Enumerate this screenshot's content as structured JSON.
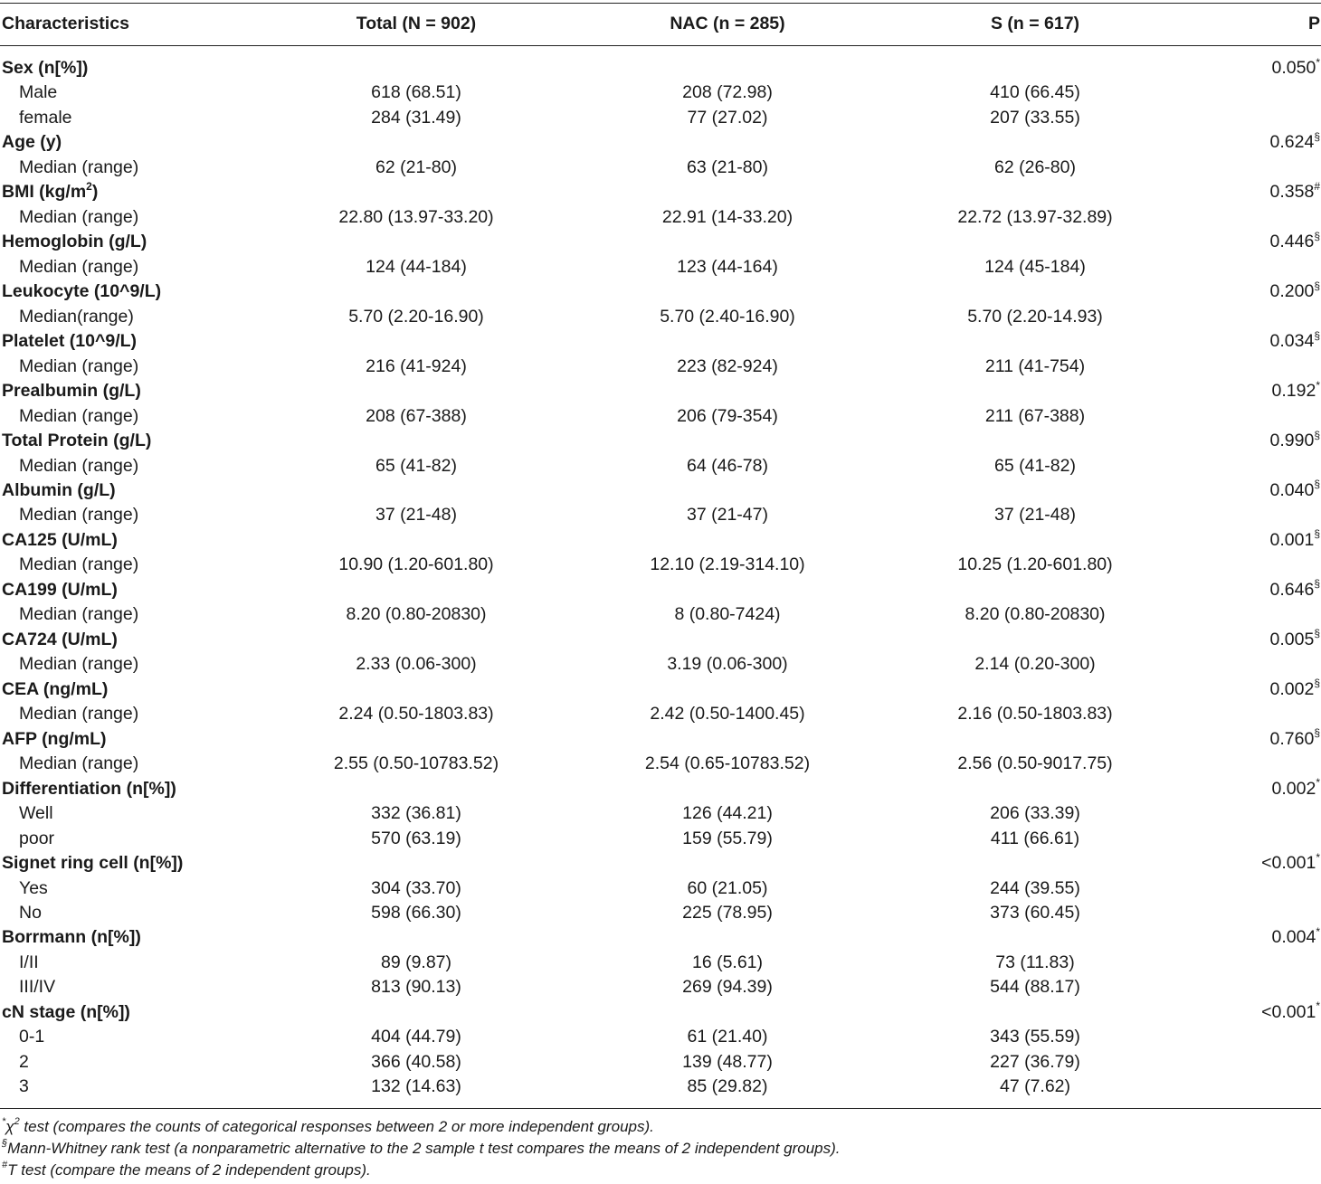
{
  "headers": [
    "Characteristics",
    "Total (N = 902)",
    "NAC (n = 285)",
    "S (n = 617)",
    "P"
  ],
  "rows": [
    {
      "label": "Sex (n[%])",
      "bold": true,
      "p": "0.050",
      "p_mark": "*"
    },
    {
      "label": "Male",
      "total": "618 (68.51)",
      "nac": "208 (72.98)",
      "s": "410 (66.45)"
    },
    {
      "label": "female",
      "total": "284 (31.49)",
      "nac": "77 (27.02)",
      "s": "207 (33.55)"
    },
    {
      "label": "Age (y)",
      "bold": true,
      "p": "0.624",
      "p_mark": "§"
    },
    {
      "label": "Median (range)",
      "total": "62 (21-80)",
      "nac": "63 (21-80)",
      "s": "62 (26-80)"
    },
    {
      "label": "BMI (kg/m",
      "label_sup": "2",
      "label_tail": ")",
      "bold": true,
      "p": "0.358",
      "p_mark": "#"
    },
    {
      "label": "Median (range)",
      "total": "22.80 (13.97-33.20)",
      "nac": "22.91 (14-33.20)",
      "s": "22.72 (13.97-32.89)"
    },
    {
      "label": "Hemoglobin (g/L)",
      "bold": true,
      "p": "0.446",
      "p_mark": "§"
    },
    {
      "label": "Median (range)",
      "total": "124 (44-184)",
      "nac": "123 (44-164)",
      "s": "124 (45-184)"
    },
    {
      "label": "Leukocyte (10^9/L)",
      "bold": true,
      "p": "0.200",
      "p_mark": "§"
    },
    {
      "label": "Median(range)",
      "total": "5.70 (2.20-16.90)",
      "nac": "5.70 (2.40-16.90)",
      "s": "5.70 (2.20-14.93)"
    },
    {
      "label": "Platelet (10^9/L)",
      "bold": true,
      "p": "0.034",
      "p_mark": "§"
    },
    {
      "label": "Median (range)",
      "total": "216 (41-924)",
      "nac": "223 (82-924)",
      "s": "211 (41-754)"
    },
    {
      "label": "Prealbumin (g/L)",
      "bold": true,
      "p": "0.192",
      "p_mark": "*"
    },
    {
      "label": "Median (range)",
      "total": "208 (67-388)",
      "nac": "206 (79-354)",
      "s": "211 (67-388)"
    },
    {
      "label": "Total Protein (g/L)",
      "bold": true,
      "p": "0.990",
      "p_mark": "§"
    },
    {
      "label": "Median (range)",
      "total": "65 (41-82)",
      "nac": "64 (46-78)",
      "s": "65 (41-82)"
    },
    {
      "label": "Albumin (g/L)",
      "bold": true,
      "p": "0.040",
      "p_mark": "§"
    },
    {
      "label": "Median (range)",
      "total": "37 (21-48)",
      "nac": "37 (21-47)",
      "s": "37 (21-48)"
    },
    {
      "label": "CA125 (U/mL)",
      "bold": true,
      "p": "0.001",
      "p_mark": "§"
    },
    {
      "label": "Median (range)",
      "total": "10.90 (1.20-601.80)",
      "nac": "12.10 (2.19-314.10)",
      "s": "10.25 (1.20-601.80)"
    },
    {
      "label": "CA199 (U/mL)",
      "bold": true,
      "p": "0.646",
      "p_mark": "§"
    },
    {
      "label": "Median (range)",
      "total": "8.20 (0.80-20830)",
      "nac": "8 (0.80-7424)",
      "s": "8.20 (0.80-20830)"
    },
    {
      "label": "CA724 (U/mL)",
      "bold": true,
      "p": "0.005",
      "p_mark": "§"
    },
    {
      "label": "Median (range)",
      "total": "2.33 (0.06-300)",
      "nac": "3.19 (0.06-300)",
      "s": "2.14 (0.20-300)"
    },
    {
      "label": "CEA (ng/mL)",
      "bold": true,
      "p": "0.002",
      "p_mark": "§"
    },
    {
      "label": "Median (range)",
      "total": "2.24 (0.50-1803.83)",
      "nac": "2.42 (0.50-1400.45)",
      "s": "2.16 (0.50-1803.83)"
    },
    {
      "label": "AFP (ng/mL)",
      "bold": true,
      "p": "0.760",
      "p_mark": "§"
    },
    {
      "label": "Median (range)",
      "total": "2.55 (0.50-10783.52)",
      "nac": "2.54 (0.65-10783.52)",
      "s": "2.56 (0.50-9017.75)"
    },
    {
      "label": "Differentiation (n[%])",
      "bold": true,
      "p": "0.002",
      "p_mark": "*"
    },
    {
      "label": "Well",
      "total": "332 (36.81)",
      "nac": "126 (44.21)",
      "s": "206 (33.39)"
    },
    {
      "label": "poor",
      "total": "570 (63.19)",
      "nac": "159 (55.79)",
      "s": "411 (66.61)"
    },
    {
      "label": "Signet ring cell (n[%])",
      "bold": true,
      "p": "<0.001",
      "p_mark": "*"
    },
    {
      "label": "Yes",
      "total": "304 (33.70)",
      "nac": "60 (21.05)",
      "s": "244 (39.55)"
    },
    {
      "label": "No",
      "total": "598 (66.30)",
      "nac": "225 (78.95)",
      "s": "373 (60.45)"
    },
    {
      "label": "Borrmann (n[%])",
      "bold": true,
      "p": "0.004",
      "p_mark": "*"
    },
    {
      "label": "I/II",
      "total": "89 (9.87)",
      "nac": "16 (5.61)",
      "s": "73 (11.83)"
    },
    {
      "label": "III/IV",
      "total": "813 (90.13)",
      "nac": "269 (94.39)",
      "s": "544 (88.17)"
    },
    {
      "label": "cN stage (n[%])",
      "bold": true,
      "p": "<0.001",
      "p_mark": "*"
    },
    {
      "label": "0-1",
      "total": "404 (44.79)",
      "nac": "61 (21.40)",
      "s": "343 (55.59)"
    },
    {
      "label": "2",
      "total": "366 (40.58)",
      "nac": "139 (48.77)",
      "s": "227 (36.79)"
    },
    {
      "label": "3",
      "total": "132 (14.63)",
      "nac": "85 (29.82)",
      "s": "47 (7.62)"
    }
  ],
  "footnotes": [
    {
      "mark": "*",
      "symbol": "χ",
      "symbol_sup": "2",
      "text": " test (compares the counts of categorical responses between 2 or more independent groups)."
    },
    {
      "mark": "§",
      "symbol": "",
      "symbol_sup": "",
      "text": "Mann-Whitney rank test (a nonparametric alternative to the 2 sample t test compares the means of 2 independent groups)."
    },
    {
      "mark": "#",
      "symbol": "",
      "symbol_sup": "",
      "text": "T test (compare the means of 2 independent groups)."
    }
  ]
}
